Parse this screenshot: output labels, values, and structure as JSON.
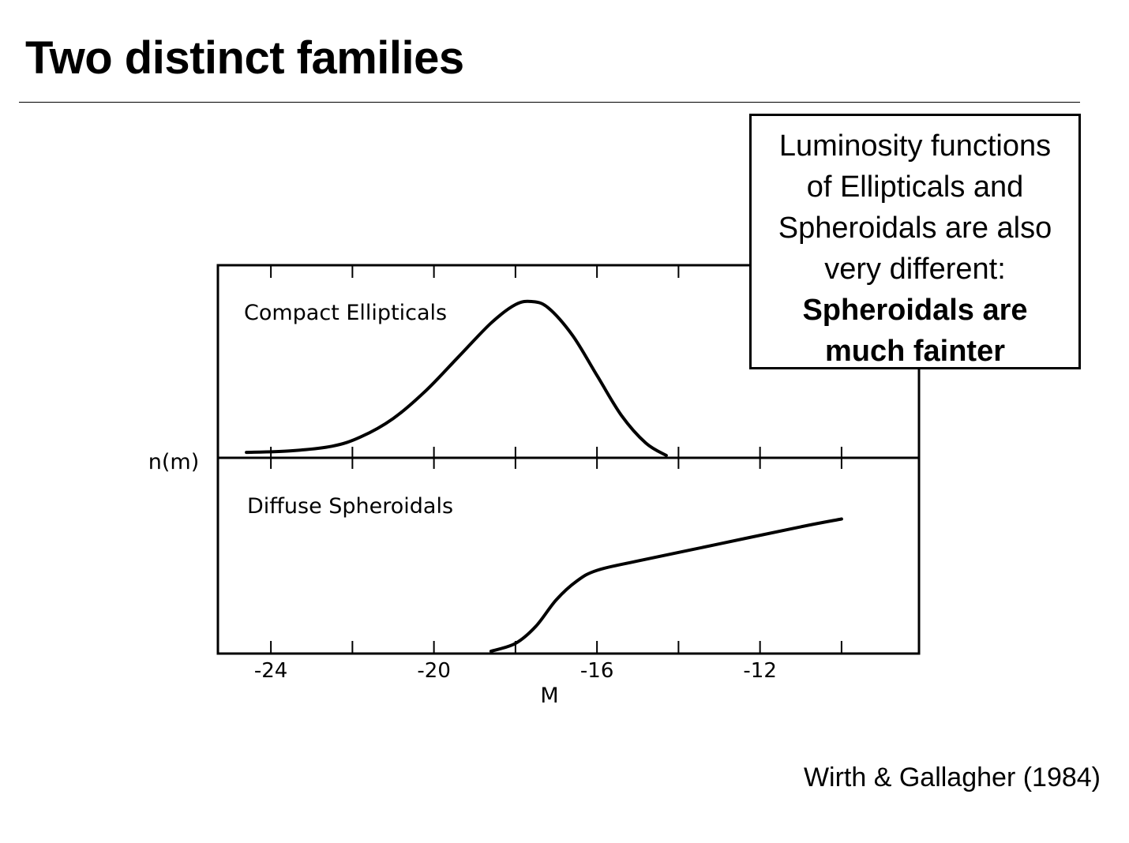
{
  "slide": {
    "title": "Two distinct families",
    "credit": "Wirth & Gallagher (1984)",
    "callout": {
      "lines": [
        "Luminosity functions",
        "of Ellipticals and",
        "Spheroidals are also",
        "very different:"
      ],
      "bold_lines": [
        "Spheroidals are",
        "much fainter"
      ]
    }
  },
  "chart_data": {
    "type": "line",
    "ylabel": "n(m)",
    "xlabel": "M",
    "xlim": [
      -25.3,
      -8.1
    ],
    "xticks": [
      -24,
      -20,
      -16,
      -12
    ],
    "xticks_minor": [
      -22,
      -18,
      -14,
      -10
    ],
    "line_color": "#000000",
    "panels": [
      {
        "name": "Compact Ellipticals",
        "ylim": [
          0,
          1
        ],
        "points": [
          [
            -24.6,
            0.02
          ],
          [
            -23.5,
            0.03
          ],
          [
            -22.5,
            0.06
          ],
          [
            -21.8,
            0.12
          ],
          [
            -21.0,
            0.24
          ],
          [
            -20.2,
            0.42
          ],
          [
            -19.4,
            0.64
          ],
          [
            -18.6,
            0.86
          ],
          [
            -18.0,
            0.98
          ],
          [
            -17.6,
            1.0
          ],
          [
            -17.2,
            0.96
          ],
          [
            -16.6,
            0.78
          ],
          [
            -16.0,
            0.52
          ],
          [
            -15.4,
            0.26
          ],
          [
            -14.8,
            0.08
          ],
          [
            -14.3,
            0.0
          ]
        ]
      },
      {
        "name": "Diffuse Spheroidals",
        "ylim": [
          0,
          1
        ],
        "points": [
          [
            -18.6,
            0.0
          ],
          [
            -18.0,
            0.05
          ],
          [
            -17.5,
            0.16
          ],
          [
            -17.0,
            0.33
          ],
          [
            -16.5,
            0.45
          ],
          [
            -16.0,
            0.52
          ],
          [
            -15.0,
            0.58
          ],
          [
            -13.0,
            0.69
          ],
          [
            -11.0,
            0.8
          ],
          [
            -10.0,
            0.85
          ]
        ]
      }
    ]
  }
}
